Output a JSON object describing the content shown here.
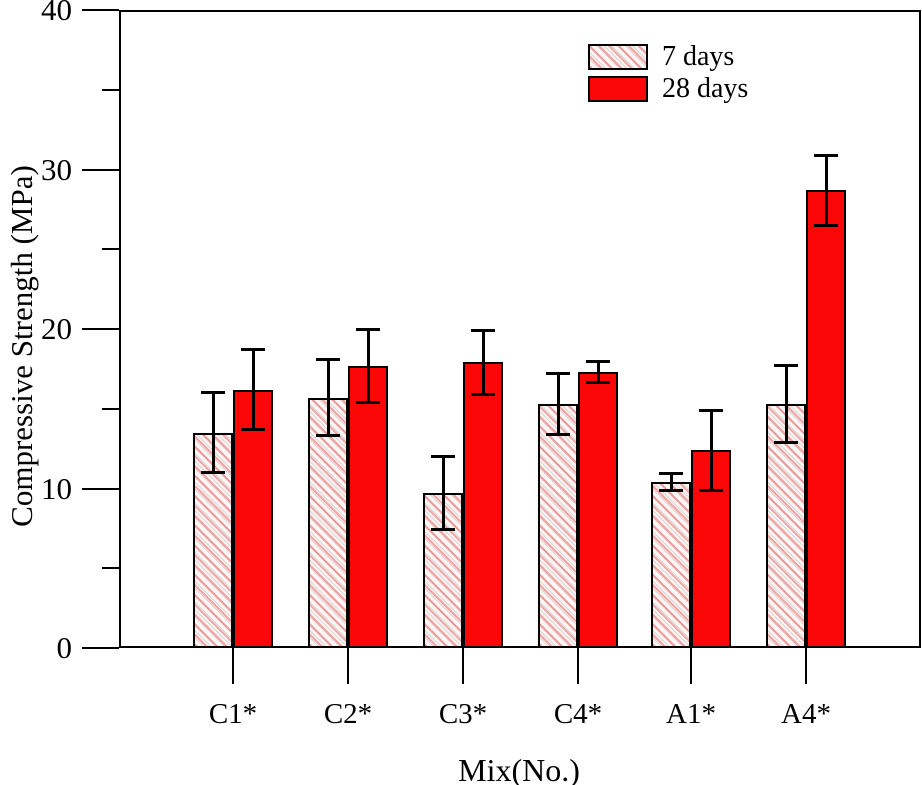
{
  "chart_data": {
    "type": "bar",
    "title": "",
    "xlabel": "Mix(No.)",
    "ylabel": "Compressive Strength (MPa)",
    "ylim": [
      0,
      40
    ],
    "y_major_ticks": [
      0,
      10,
      20,
      30,
      40
    ],
    "y_minor_ticks": [
      5,
      15,
      25,
      35
    ],
    "categories": [
      "C1*",
      "C2*",
      "C3*",
      "C4*",
      "A1*",
      "A4*"
    ],
    "series": [
      {
        "name": "7 days",
        "style": "hatched",
        "values": [
          13.5,
          15.7,
          9.7,
          15.3,
          10.4,
          15.3
        ],
        "errors": [
          2.5,
          2.4,
          2.3,
          1.9,
          0.55,
          2.4
        ]
      },
      {
        "name": "28 days",
        "style": "solid",
        "values": [
          16.2,
          17.7,
          17.9,
          17.3,
          12.4,
          28.7
        ],
        "errors": [
          2.5,
          2.3,
          2.0,
          0.65,
          2.5,
          2.2
        ]
      }
    ],
    "error_bars": true,
    "grid": false,
    "legend_position": "upper-right-inside"
  },
  "colors": {
    "solid_bar": "#fb0707",
    "hatch_line": "rgba(236,110,110,0.6)",
    "hatch_bg": "#fdf6f5",
    "axis": "#000000",
    "background": "#ffffff"
  }
}
